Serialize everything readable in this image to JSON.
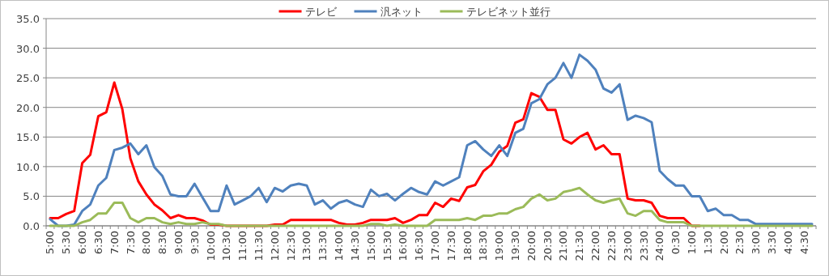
{
  "chart_data": {
    "type": "line",
    "legend": "top",
    "grid": "y",
    "marker": "none",
    "line_style": "solid",
    "categories": [
      "5:00",
      null,
      "5:30",
      null,
      "6:00",
      null,
      "6:30",
      null,
      "7:00",
      null,
      "7:30",
      null,
      "8:00",
      null,
      "8:30",
      null,
      "9:00",
      null,
      "9:30",
      null,
      "10:00",
      null,
      "10:30",
      null,
      "11:00",
      null,
      "11:30",
      null,
      "12:00",
      null,
      "12:30",
      null,
      "13:00",
      null,
      "13:30",
      null,
      "14:00",
      null,
      "14:30",
      null,
      "15:00",
      null,
      "15:30",
      null,
      "16:00",
      null,
      "16:30",
      null,
      "17:00",
      null,
      "17:30",
      null,
      "18:00",
      null,
      "18:30",
      null,
      "19:00",
      null,
      "19:30",
      null,
      "20:00",
      null,
      "20:30",
      null,
      "21:00",
      null,
      "21:30",
      null,
      "22:00",
      null,
      "22:30",
      null,
      "23:00",
      null,
      "23:30",
      null,
      "24:00",
      null,
      "0:30",
      null,
      "1:00",
      null,
      "1:30",
      null,
      "2:00",
      null,
      "2:30",
      null,
      "3:00",
      null,
      "3:30",
      null,
      "4:00",
      null,
      "4:30",
      null
    ],
    "ylim": [
      0,
      35
    ],
    "yticks": [
      {
        "value": 0,
        "label": "0.0"
      },
      {
        "value": 5,
        "label": "5.0"
      },
      {
        "value": 10,
        "label": "10.0"
      },
      {
        "value": 15,
        "label": "15.0"
      },
      {
        "value": 20,
        "label": "20.0"
      },
      {
        "value": 25,
        "label": "25.0"
      },
      {
        "value": 30,
        "label": "30.0"
      },
      {
        "value": 35,
        "label": "35.0"
      }
    ],
    "series": [
      {
        "name": "テレビ",
        "color": "#ff0000",
        "values": [
          1.3,
          1.3,
          2.0,
          2.5,
          10.6,
          12.0,
          18.5,
          19.2,
          24.2,
          19.7,
          11.4,
          7.5,
          5.3,
          3.6,
          2.6,
          1.3,
          1.8,
          1.3,
          1.3,
          0.9,
          0.2,
          0.2,
          0,
          0,
          0,
          0,
          0,
          0,
          0.2,
          0.2,
          1.0,
          1.0,
          1.0,
          1.0,
          1.0,
          1.0,
          0.5,
          0.2,
          0.2,
          0.5,
          1.0,
          1.0,
          1.0,
          1.3,
          0.5,
          1.0,
          1.8,
          1.8,
          3.9,
          3.2,
          4.6,
          4.2,
          6.5,
          6.9,
          9.2,
          10.3,
          12.5,
          13.5,
          17.4,
          18.0,
          22.4,
          21.8,
          19.6,
          19.6,
          14.6,
          13.9,
          15.0,
          15.7,
          12.9,
          13.6,
          12.1,
          12.1,
          4.6,
          4.3,
          4.3,
          3.9,
          1.7,
          1.3,
          1.3,
          1.3,
          0,
          0,
          null,
          null,
          null,
          null,
          null,
          null,
          null,
          null,
          null,
          null,
          null,
          null,
          null,
          null
        ]
      },
      {
        "name": "汎ネット",
        "color": "#4f81bd",
        "values": [
          1.1,
          0,
          0,
          0.2,
          2.5,
          3.6,
          6.8,
          8.1,
          12.8,
          13.2,
          13.9,
          12.1,
          13.6,
          9.9,
          8.4,
          5.3,
          5.0,
          5.0,
          7.1,
          4.8,
          2.5,
          2.5,
          6.8,
          3.6,
          4.3,
          5.0,
          6.4,
          4.0,
          6.4,
          5.8,
          6.8,
          7.1,
          6.8,
          3.6,
          4.3,
          2.9,
          3.9,
          4.3,
          3.6,
          3.2,
          6.1,
          5.0,
          5.4,
          4.3,
          5.4,
          6.4,
          5.7,
          5.3,
          7.5,
          6.8,
          7.5,
          8.2,
          13.6,
          14.3,
          12.9,
          11.8,
          13.6,
          11.8,
          15.7,
          16.4,
          20.7,
          21.4,
          23.9,
          25.0,
          27.5,
          25.0,
          28.9,
          27.9,
          26.4,
          23.2,
          22.5,
          23.9,
          17.9,
          18.6,
          18.2,
          17.5,
          9.3,
          7.9,
          6.8,
          6.8,
          5.0,
          5.0,
          2.5,
          2.9,
          1.8,
          1.8,
          1.0,
          1.0,
          0.3,
          0.3,
          0.3,
          0.3,
          0.3,
          0.3,
          0.3,
          0.3
        ]
      },
      {
        "name": "テレビネット並行",
        "color": "#9bbb59",
        "values": [
          0,
          0,
          0,
          0,
          0.6,
          1.0,
          2.1,
          2.1,
          3.9,
          3.9,
          1.3,
          0.6,
          1.3,
          1.3,
          0.6,
          0.3,
          0.6,
          0.3,
          0.3,
          0.6,
          0.3,
          0.3,
          0,
          0,
          0,
          0,
          0,
          0,
          0,
          0,
          0,
          0,
          0,
          0,
          0,
          0,
          0,
          0,
          0,
          0,
          0.3,
          0.3,
          0,
          0.2,
          0,
          0,
          0,
          0,
          1.0,
          1.0,
          1.0,
          1.0,
          1.3,
          1.0,
          1.7,
          1.7,
          2.1,
          2.1,
          2.8,
          3.2,
          4.6,
          5.3,
          4.3,
          4.6,
          5.7,
          6.0,
          6.4,
          5.3,
          4.3,
          3.9,
          4.3,
          4.6,
          2.1,
          1.7,
          2.5,
          2.5,
          1.0,
          0.6,
          0.6,
          0.6,
          0,
          0,
          0,
          0,
          0,
          0,
          0,
          0,
          0,
          0,
          0,
          0,
          0,
          0,
          0,
          0
        ]
      }
    ]
  }
}
